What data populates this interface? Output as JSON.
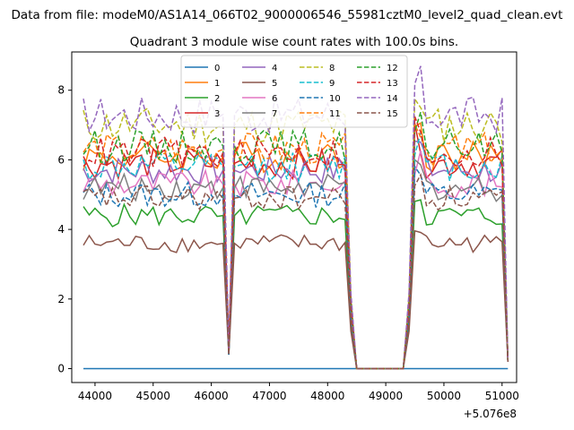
{
  "chart_data": {
    "type": "line",
    "suptitle": "Data from file: modeM0/AS1A14_066T02_9000006546_55981cztM0_level2_quad_clean.evt",
    "title": "Quadrant 3 module wise count rates with 100.0s bins.",
    "xlabel": "",
    "ylabel": "",
    "x_offset_label": "+5.076e8",
    "xlim": [
      43600,
      51250
    ],
    "ylim": [
      -0.4,
      9.1
    ],
    "xticks": [
      44000,
      45000,
      46000,
      47000,
      48000,
      49000,
      50000,
      51000
    ],
    "yticks": [
      0,
      2,
      4,
      6,
      8
    ],
    "grid": false,
    "legend": {
      "placement": "upper-center",
      "columns": 4
    },
    "x": {
      "start": 43800,
      "step": 100,
      "count": 74
    },
    "shape": {
      "dips": [
        [
          46200,
          46400
        ],
        [
          48350,
          48500
        ],
        [
          49300,
          49450
        ]
      ],
      "zero_range": [
        48500,
        49300
      ],
      "end_value": 0.2
    },
    "series": [
      {
        "name": "0",
        "level": 0.0,
        "color": "#1f77b4",
        "dash": "solid"
      },
      {
        "name": "1",
        "level": 6.1,
        "color": "#ff7f0e",
        "dash": "solid"
      },
      {
        "name": "2",
        "level": 4.4,
        "color": "#2ca02c",
        "dash": "solid"
      },
      {
        "name": "3",
        "level": 5.9,
        "color": "#d62728",
        "dash": "solid"
      },
      {
        "name": "4",
        "level": 5.7,
        "color": "#9467bd",
        "dash": "solid"
      },
      {
        "name": "5",
        "level": 3.6,
        "color": "#8c564b",
        "dash": "solid"
      },
      {
        "name": "6",
        "level": 5.3,
        "color": "#e377c2",
        "dash": "solid"
      },
      {
        "name": "7",
        "level": 5.2,
        "color": "#7f7f7f",
        "dash": "solid"
      },
      {
        "name": "8",
        "level": 7.0,
        "color": "#bcbd22",
        "dash": "dashed"
      },
      {
        "name": "9",
        "level": 5.8,
        "color": "#17becf",
        "dash": "dashed"
      },
      {
        "name": "10",
        "level": 5.0,
        "color": "#1f77b4",
        "dash": "dashed"
      },
      {
        "name": "11",
        "level": 6.3,
        "color": "#ff7f0e",
        "dash": "dashed"
      },
      {
        "name": "12",
        "level": 6.4,
        "color": "#2ca02c",
        "dash": "dashed"
      },
      {
        "name": "13",
        "level": 6.2,
        "color": "#d62728",
        "dash": "dashed"
      },
      {
        "name": "14",
        "level": 7.3,
        "color": "#9467bd",
        "dash": "dashed"
      },
      {
        "name": "15",
        "level": 4.9,
        "color": "#8c564b",
        "dash": "dashed"
      }
    ]
  }
}
